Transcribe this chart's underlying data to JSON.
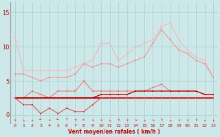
{
  "x": [
    0,
    1,
    2,
    3,
    4,
    5,
    6,
    7,
    8,
    9,
    10,
    11,
    12,
    13,
    14,
    15,
    16,
    17,
    18,
    19,
    20,
    21,
    22,
    23
  ],
  "rafales_max": [
    11.5,
    6.5,
    6.5,
    6.5,
    6.5,
    6.5,
    6.5,
    7.0,
    7.5,
    8.0,
    10.5,
    10.5,
    8.0,
    9.0,
    10.0,
    10.5,
    11.0,
    13.0,
    13.5,
    11.0,
    9.5,
    8.5,
    8.0,
    5.5
  ],
  "rafales_mean": [
    6.0,
    6.0,
    5.5,
    5.0,
    5.5,
    5.5,
    5.5,
    6.0,
    7.5,
    7.0,
    7.5,
    7.5,
    7.0,
    7.5,
    8.0,
    8.5,
    10.5,
    12.5,
    11.0,
    9.5,
    9.0,
    8.0,
    7.5,
    5.5
  ],
  "vent_max": [
    2.5,
    2.5,
    3.5,
    3.0,
    2.5,
    3.5,
    3.5,
    3.5,
    5.0,
    3.5,
    3.5,
    3.5,
    3.5,
    3.5,
    3.5,
    3.5,
    4.0,
    4.5,
    3.5,
    3.5,
    3.5,
    3.5,
    3.0,
    3.0
  ],
  "vent_mean": [
    2.5,
    2.5,
    2.5,
    2.5,
    2.5,
    2.5,
    2.5,
    2.5,
    2.5,
    2.5,
    2.5,
    2.5,
    2.5,
    2.5,
    2.5,
    2.5,
    2.5,
    2.5,
    2.5,
    2.5,
    2.5,
    2.5,
    2.5,
    2.5
  ],
  "vent_instant": [
    2.5,
    2.5,
    2.5,
    2.5,
    2.5,
    2.5,
    2.5,
    2.5,
    2.5,
    2.5,
    3.0,
    3.0,
    3.0,
    3.0,
    3.5,
    3.5,
    3.5,
    3.5,
    3.5,
    3.5,
    3.5,
    3.5,
    3.0,
    3.0
  ],
  "vent_inst_low": [
    2.5,
    1.5,
    1.5,
    0.2,
    1.0,
    0.2,
    1.0,
    0.5,
    0.5,
    1.5,
    2.5,
    2.5,
    2.5,
    2.5,
    2.5,
    2.5,
    2.5,
    2.5,
    2.5,
    2.5,
    2.5,
    2.5,
    2.5,
    2.5
  ],
  "arrow_angles": [
    225,
    200,
    200,
    45,
    225,
    45,
    340,
    250,
    90,
    225,
    225,
    200,
    270,
    225,
    225,
    200,
    225,
    270,
    200,
    230,
    225,
    270,
    200,
    200
  ],
  "bg_color": "#cce8e8",
  "grid_color": "#aacccc",
  "xlabel": "Vent moyen/en rafales ( km/h )",
  "ylim": [
    -1.2,
    16.5
  ],
  "yticks": [
    0,
    5,
    10,
    15
  ],
  "xticks": [
    0,
    1,
    2,
    3,
    4,
    5,
    6,
    7,
    8,
    9,
    10,
    11,
    12,
    13,
    14,
    15,
    16,
    17,
    18,
    19,
    20,
    21,
    22,
    23
  ],
  "c_rmax": "#ffb0b0",
  "c_rmean": "#ff8888",
  "c_vmax": "#ff6666",
  "c_vmean": "#cc0000",
  "c_vinst": "#cc0000",
  "c_vilow": "#ee3333",
  "c_arrow": "#cc2222",
  "c_tick": "#cc0000"
}
